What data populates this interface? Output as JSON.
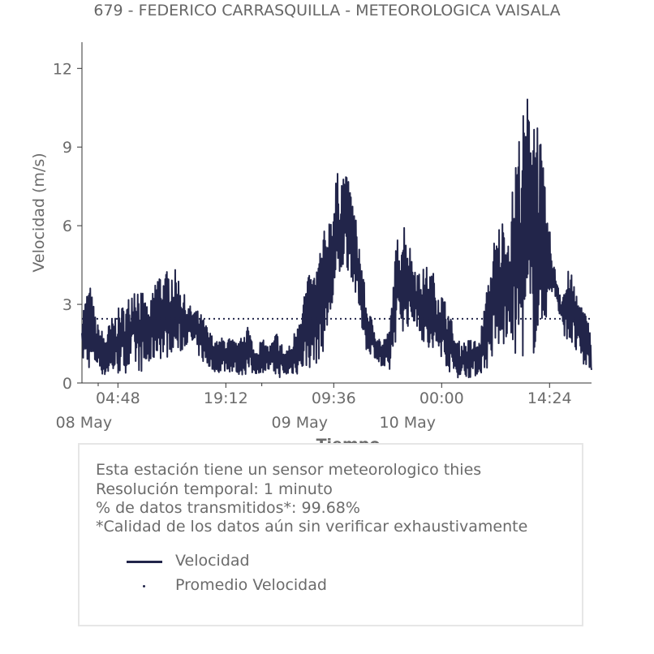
{
  "chart_data": {
    "type": "line",
    "title": "679 - FEDERICO CARRASQUILLA - METEOROLOGICA VAISALA",
    "xlabel": "Tiempo",
    "ylabel": "Velocidad (m/s)",
    "ylim": [
      0,
      13
    ],
    "yticks": [
      "0",
      "3",
      "6",
      "9",
      "12"
    ],
    "xlim": [
      "2024-05-08 00:00",
      "2024-05-10 20:00"
    ],
    "xticks": [
      {
        "time": "2024-05-08 04:48",
        "label": "04:48",
        "date": "08 May"
      },
      {
        "time": "2024-05-08 19:12",
        "label": "19:12",
        "date": ""
      },
      {
        "time": "2024-05-09 09:36",
        "label": "09:36",
        "date": "09 May"
      },
      {
        "time": "2024-05-10 00:00",
        "label": "00:00",
        "date": "10 May"
      },
      {
        "time": "2024-05-10 14:24",
        "label": "14:24",
        "date": ""
      }
    ],
    "grid": false,
    "series": [
      {
        "name": "Velocidad",
        "color": "#22254a",
        "style": "solid",
        "x": [
          "2024-05-08 00:00",
          "2024-05-08 01:00",
          "2024-05-08 02:00",
          "2024-05-08 03:00",
          "2024-05-08 04:00",
          "2024-05-08 05:00",
          "2024-05-08 06:00",
          "2024-05-08 07:00",
          "2024-05-08 08:00",
          "2024-05-08 09:00",
          "2024-05-08 10:00",
          "2024-05-08 11:00",
          "2024-05-08 12:00",
          "2024-05-08 13:00",
          "2024-05-08 14:00",
          "2024-05-08 15:00",
          "2024-05-08 16:00",
          "2024-05-08 17:00",
          "2024-05-08 18:00",
          "2024-05-08 19:00",
          "2024-05-08 20:00",
          "2024-05-08 21:00",
          "2024-05-08 22:00",
          "2024-05-08 23:00",
          "2024-05-09 00:00",
          "2024-05-09 01:00",
          "2024-05-09 02:00",
          "2024-05-09 03:00",
          "2024-05-09 04:00",
          "2024-05-09 05:00",
          "2024-05-09 06:00",
          "2024-05-09 07:00",
          "2024-05-09 08:00",
          "2024-05-09 09:00",
          "2024-05-09 10:00",
          "2024-05-09 11:00",
          "2024-05-09 12:00",
          "2024-05-09 13:00",
          "2024-05-09 14:00",
          "2024-05-09 15:00",
          "2024-05-09 16:00",
          "2024-05-09 17:00",
          "2024-05-09 18:00",
          "2024-05-09 19:00",
          "2024-05-09 20:00",
          "2024-05-09 21:00",
          "2024-05-09 22:00",
          "2024-05-09 23:00",
          "2024-05-10 00:00",
          "2024-05-10 01:00",
          "2024-05-10 02:00",
          "2024-05-10 03:00",
          "2024-05-10 04:00",
          "2024-05-10 05:00",
          "2024-05-10 06:00",
          "2024-05-10 07:00",
          "2024-05-10 08:00",
          "2024-05-10 09:00",
          "2024-05-10 10:00",
          "2024-05-10 11:00",
          "2024-05-10 12:00",
          "2024-05-10 13:00",
          "2024-05-10 14:00",
          "2024-05-10 15:00",
          "2024-05-10 16:00",
          "2024-05-10 17:00",
          "2024-05-10 18:00",
          "2024-05-10 19:00",
          "2024-05-10 20:00"
        ],
        "y_low": [
          0.8,
          0.5,
          0.6,
          0.2,
          0.3,
          0.3,
          0.4,
          0.5,
          0.4,
          0.5,
          1.0,
          0.8,
          1.2,
          1.0,
          1.5,
          1.3,
          0.8,
          0.5,
          0.4,
          0.4,
          0.4,
          0.3,
          0.3,
          0.3,
          0.4,
          0.4,
          0.2,
          0.2,
          0.3,
          0.3,
          0.5,
          0.6,
          1.0,
          2.0,
          3.2,
          4.5,
          4.0,
          2.5,
          1.2,
          1.0,
          0.5,
          0.3,
          1.8,
          2.0,
          2.2,
          2.0,
          1.0,
          0.8,
          1.0,
          0.4,
          0.2,
          0.2,
          0.2,
          0.3,
          0.5,
          1.0,
          1.2,
          1.5,
          0.9,
          1.0,
          0.8,
          1.5,
          2.5,
          3.5,
          2.0,
          1.5,
          1.0,
          0.5,
          0.5
        ],
        "y_high": [
          2.8,
          3.9,
          2.3,
          1.9,
          2.5,
          2.9,
          3.1,
          4.1,
          3.5,
          2.8,
          4.4,
          4.2,
          4.5,
          4.1,
          3.0,
          2.9,
          2.6,
          2.0,
          1.6,
          1.8,
          1.7,
          1.5,
          2.5,
          1.3,
          1.7,
          1.4,
          2.0,
          1.3,
          1.5,
          2.9,
          4.0,
          4.3,
          5.5,
          6.5,
          8.0,
          8.2,
          7.3,
          5.5,
          3.0,
          2.2,
          1.6,
          2.0,
          5.5,
          6.3,
          5.0,
          4.2,
          4.5,
          4.2,
          3.5,
          2.8,
          1.6,
          1.6,
          1.7,
          1.6,
          3.5,
          5.5,
          6.4,
          6.0,
          9.2,
          10.5,
          11.8,
          10.0,
          6.8,
          4.5,
          3.4,
          4.4,
          3.6,
          2.8,
          2.1
        ]
      },
      {
        "name": "Promedio Velocidad",
        "color": "#22254a",
        "style": "dotted",
        "y": 2.45
      }
    ]
  },
  "info": {
    "line1": "Esta estación tiene un sensor meteorologico thies",
    "line2": "Resolución temporal: 1 minuto",
    "line3": "% de datos transmitidos*: 99.68%",
    "line4": "*Calidad de los datos aún sin verificar exhaustivamente"
  },
  "legend": {
    "items": [
      {
        "label": "Velocidad",
        "marker": "line"
      },
      {
        "label": "Promedio Velocidad",
        "marker": "dot"
      }
    ]
  }
}
